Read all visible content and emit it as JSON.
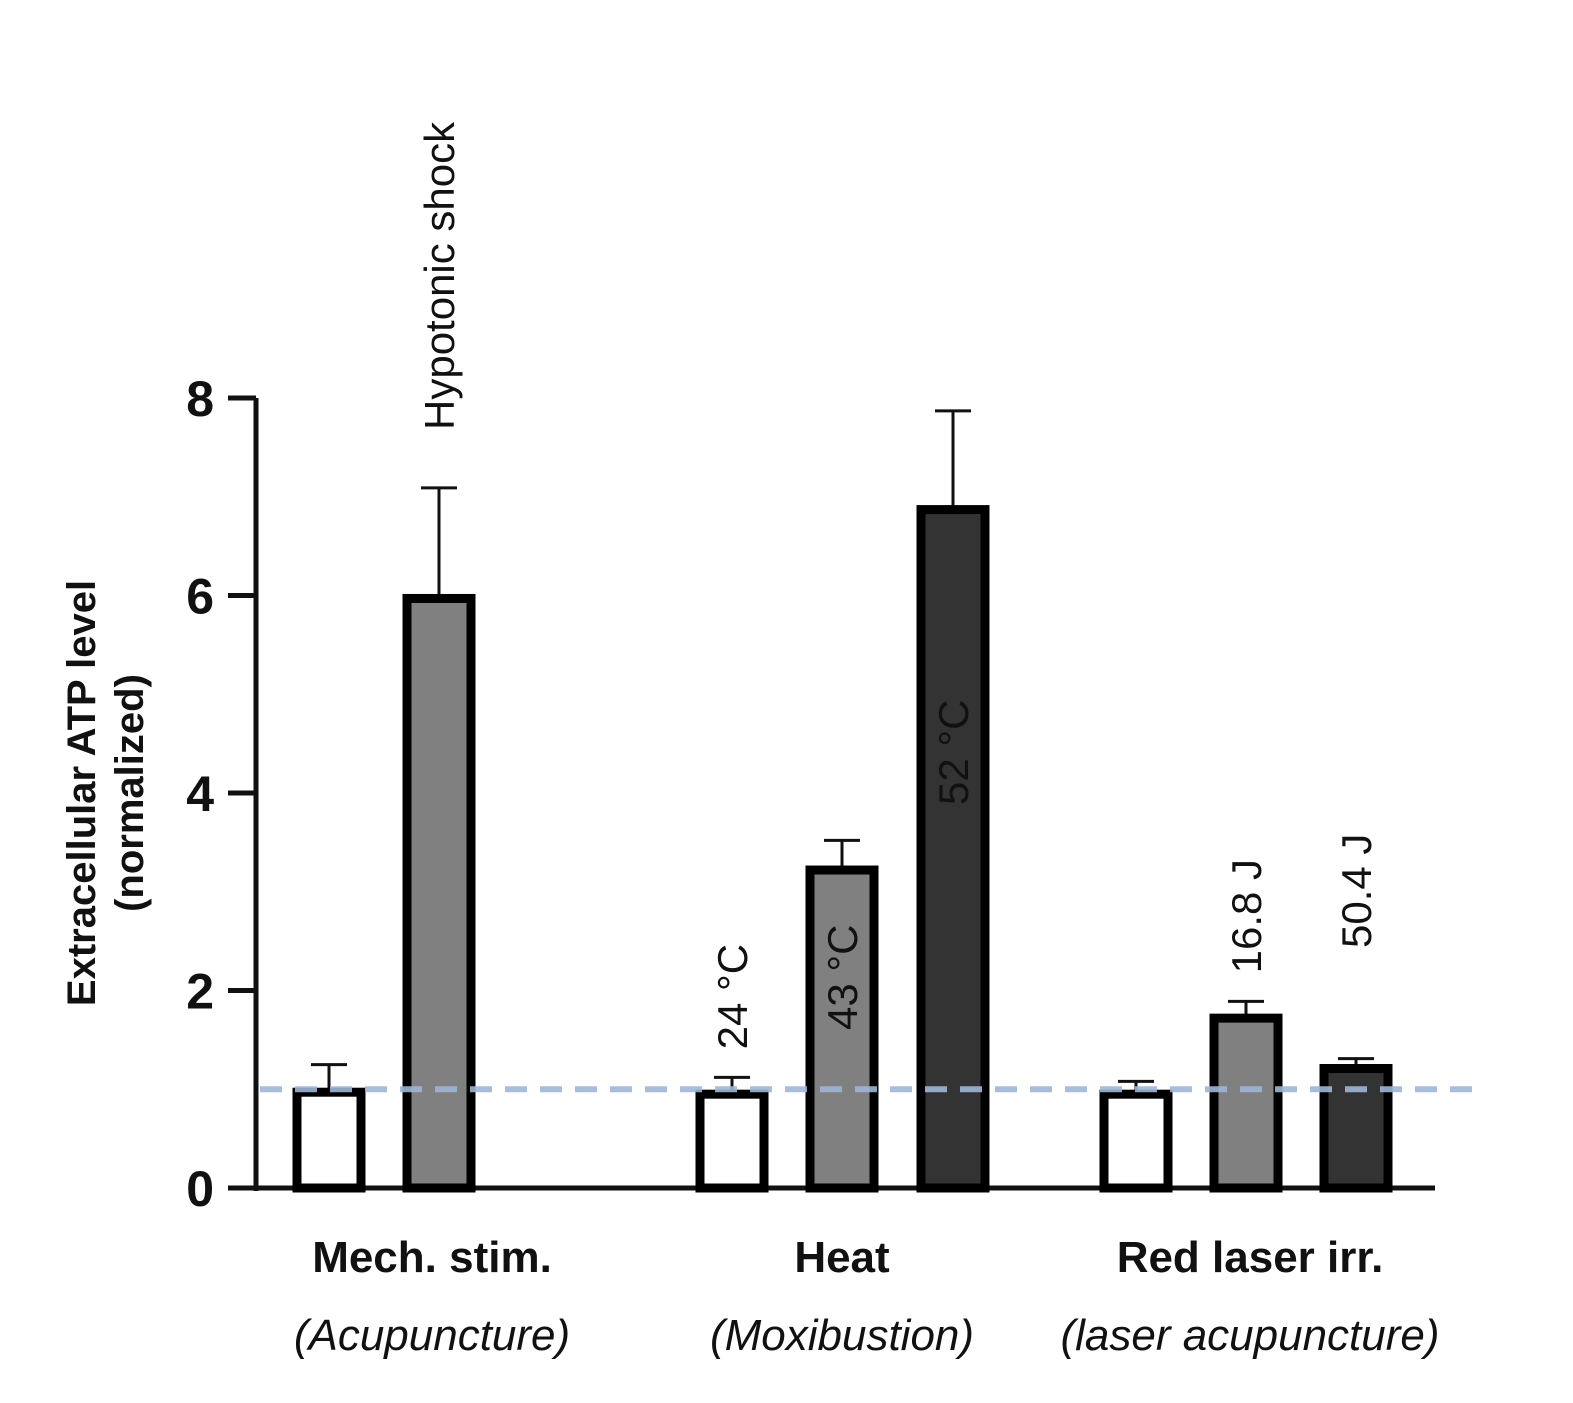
{
  "chart_data": {
    "type": "bar",
    "title": "",
    "xlabel": "",
    "ylabel_line1": "Extracellular ATP level",
    "ylabel_line2": "(normalized)",
    "ylim": [
      0,
      8
    ],
    "yticks": [
      "0",
      "2",
      "4",
      "6",
      "8"
    ],
    "reference_line": {
      "value": 1.0,
      "color": "#9fb6d8",
      "style": "dashed"
    },
    "groups": [
      {
        "label": "Mech. stim.",
        "sublabel": "(Acupuncture)",
        "bars": [
          {
            "label": "",
            "value": 0.97,
            "error": 0.28,
            "fill": "#ffffff"
          },
          {
            "label": "Hypotonic shock",
            "value": 5.97,
            "error": 1.12,
            "fill": "#808080"
          }
        ]
      },
      {
        "label": "Heat",
        "sublabel": "(Moxibustion)",
        "bars": [
          {
            "label": "24 °C",
            "value": 0.95,
            "error": 0.17,
            "fill": "#ffffff"
          },
          {
            "label": "43 °C",
            "value": 3.22,
            "error": 0.3,
            "fill": "#808080"
          },
          {
            "label": "52 °C",
            "value": 6.87,
            "error": 1.0,
            "fill": "#333333"
          }
        ]
      },
      {
        "label": "Red laser irr.",
        "sublabel": "(laser acupuncture)",
        "bars": [
          {
            "label": "",
            "value": 0.95,
            "error": 0.13,
            "fill": "#ffffff"
          },
          {
            "label": "16.8 J",
            "value": 1.72,
            "error": 0.17,
            "fill": "#808080"
          },
          {
            "label": "50.4 J",
            "value": 1.21,
            "error": 0.1,
            "fill": "#333333"
          }
        ]
      }
    ]
  }
}
